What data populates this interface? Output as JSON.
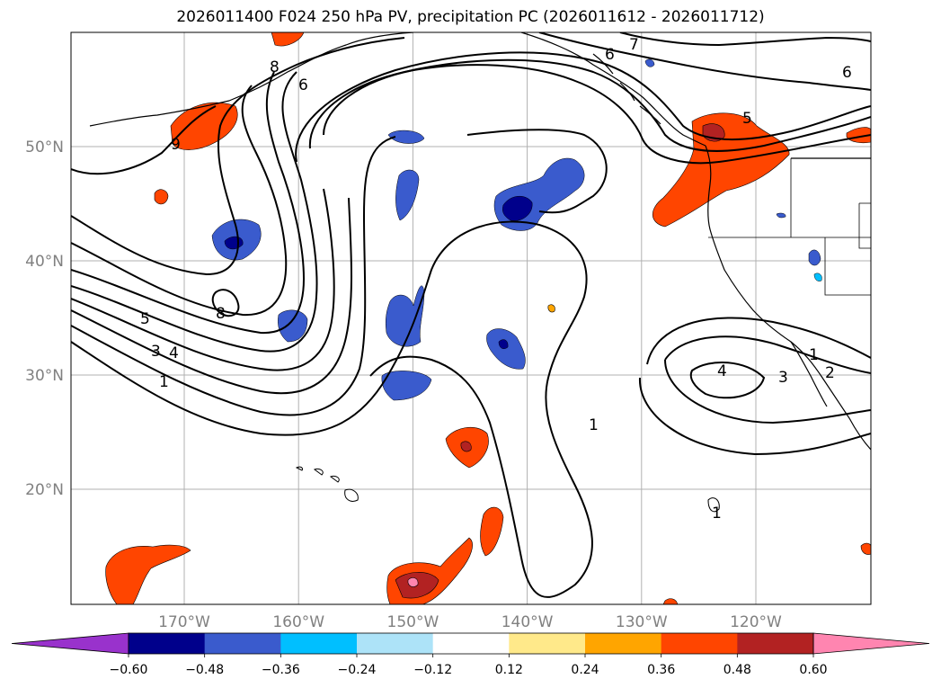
{
  "title": "2026011400 F024 250 hPa PV, precipitation PC (2026011612 - 2026011712)",
  "map": {
    "lat_ticks": [
      {
        "value": 50,
        "label": "50°N"
      },
      {
        "value": 40,
        "label": "40°N"
      },
      {
        "value": 30,
        "label": "30°N"
      },
      {
        "value": 20,
        "label": "20°N"
      }
    ],
    "lon_ticks": [
      {
        "value": -170,
        "label": "170°W"
      },
      {
        "value": -160,
        "label": "160°W"
      },
      {
        "value": -150,
        "label": "150°W"
      },
      {
        "value": -140,
        "label": "140°W"
      },
      {
        "value": -130,
        "label": "130°W"
      },
      {
        "value": -120,
        "label": "120°W"
      }
    ],
    "contour_labels": [
      "1",
      "2",
      "3",
      "4",
      "5",
      "6",
      "7",
      "8",
      "9"
    ],
    "colors": {
      "coast": "#000000",
      "grid": "#b0b0b0"
    }
  },
  "colorbar": {
    "tick_labels": [
      "−0.60",
      "−0.48",
      "−0.36",
      "−0.24",
      "−0.12",
      "0.12",
      "0.24",
      "0.36",
      "0.48",
      "0.60"
    ],
    "colors": [
      "#9932cc",
      "#00008b",
      "#3a5bcd",
      "#00bfff",
      "#ade3f8",
      "#ffffff",
      "#ffe98a",
      "#ffa500",
      "#ff4500",
      "#b22222",
      "#ff85b0"
    ]
  }
}
